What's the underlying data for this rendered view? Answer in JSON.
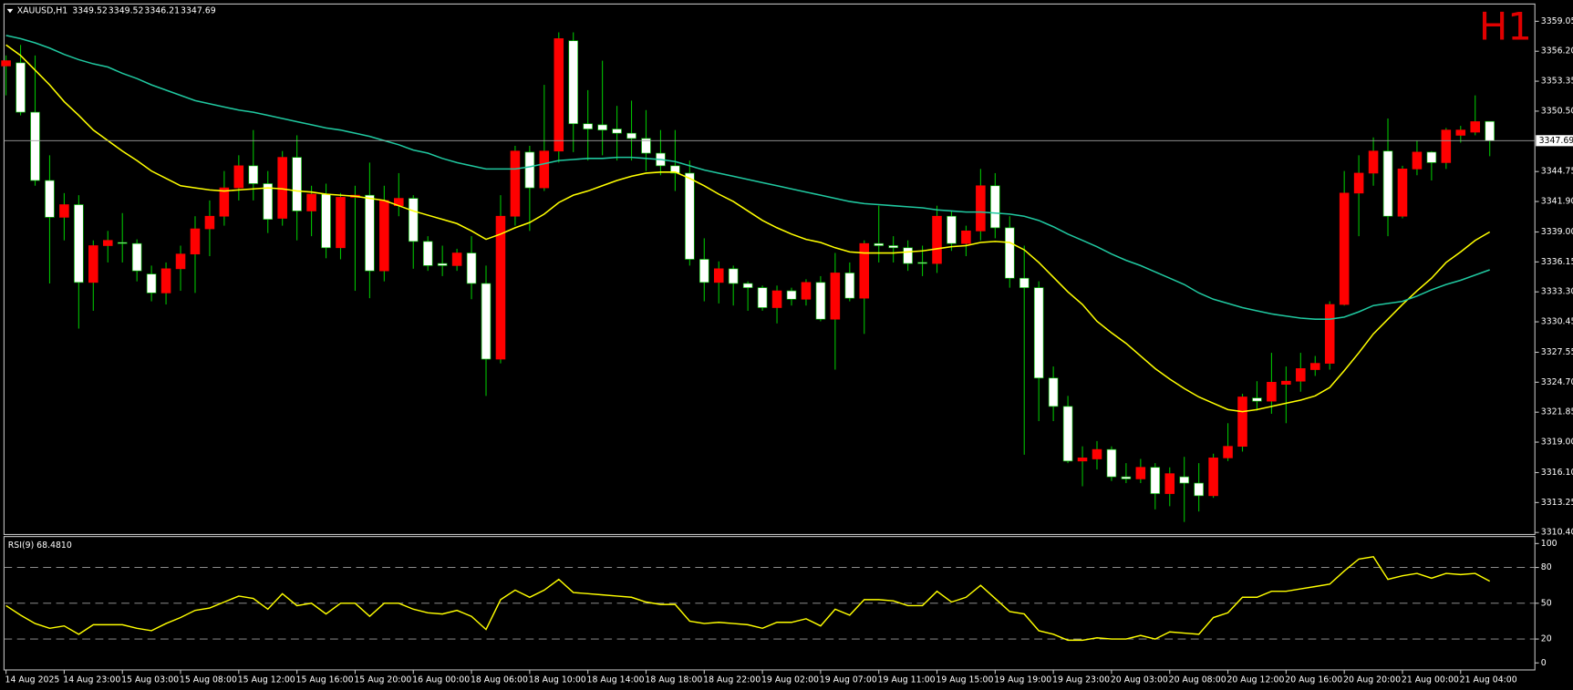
{
  "chart_data": [
    {
      "type": "candlestick",
      "symbol": "XAUUSD,H1",
      "timeframe": "H1",
      "categories": [
        "14 Aug 2025",
        null,
        null,
        null,
        "14 Aug 23:00",
        null,
        null,
        null,
        "15 Aug 03:00",
        null,
        null,
        null,
        "15 Aug 08:00",
        null,
        null,
        null,
        "15 Aug 12:00",
        null,
        null,
        null,
        "15 Aug 16:00",
        null,
        null,
        null,
        "15 Aug 20:00",
        null,
        null,
        null,
        "16 Aug 00:00",
        null,
        null,
        null,
        "18 Aug 06:00",
        null,
        null,
        null,
        "18 Aug 10:00",
        null,
        null,
        null,
        "18 Aug 14:00",
        null,
        null,
        null,
        "18 Aug 18:00",
        null,
        null,
        null,
        "18 Aug 22:00",
        null,
        null,
        null,
        "19 Aug 02:00",
        null,
        null,
        null,
        "19 Aug 07:00",
        null,
        null,
        null,
        "19 Aug 11:00",
        null,
        null,
        null,
        "19 Aug 15:00",
        null,
        null,
        null,
        "19 Aug 19:00",
        null,
        null,
        null,
        "19 Aug 23:00",
        null,
        null,
        null,
        "20 Aug 03:00",
        null,
        null,
        null,
        "20 Aug 08:00",
        null,
        null,
        null,
        "20 Aug 12:00",
        null,
        null,
        null,
        "20 Aug 16:00",
        null,
        null,
        null,
        "20 Aug 20:00",
        null,
        null,
        null,
        "21 Aug 00:00",
        null,
        null,
        null,
        "21 Aug 04:00",
        null,
        null
      ],
      "open": [
        3354.8,
        3355.1,
        3350.4,
        3343.9,
        3340.4,
        3341.6,
        3334.2,
        3337.7,
        3338.0,
        3337.9,
        3335.0,
        3333.2,
        3335.5,
        3336.9,
        3339.3,
        3340.5,
        3343.2,
        3345.3,
        3343.6,
        3340.3,
        3346.1,
        3341.0,
        3342.6,
        3337.5,
        3342.3,
        3342.5,
        3335.3,
        3341.5,
        3342.2,
        3338.1,
        3336.0,
        3335.8,
        3337.0,
        3334.1,
        3326.9,
        3340.5,
        3346.6,
        3343.2,
        3346.7,
        3357.2,
        3349.3,
        3349.2,
        3348.8,
        3348.4,
        3347.9,
        3346.5,
        3345.3,
        3344.6,
        3336.4,
        3334.2,
        3335.5,
        3334.1,
        3333.7,
        3331.8,
        3333.4,
        3332.6,
        3334.2,
        3330.7,
        3335.1,
        3332.7,
        3337.9,
        3337.7,
        3337.5,
        3336.1,
        3336.0,
        3340.5,
        3337.9,
        3339.1,
        3343.4,
        3339.4,
        3334.6,
        3333.7,
        3325.1,
        3322.4,
        3317.2,
        3317.4,
        3318.3,
        3315.7,
        3315.5,
        3316.6,
        3314.1,
        3315.7,
        3315.1,
        3313.9,
        3317.5,
        3318.6,
        3323.2,
        3322.9,
        3324.5,
        3324.8,
        3325.9,
        3326.5,
        3332.1,
        3342.7,
        3344.6,
        3346.7,
        3340.5,
        3345.0,
        3346.6,
        3345.6,
        3348.2,
        3348.5,
        3349.52
      ],
      "high": [
        3355.8,
        3356.8,
        3355.8,
        3346.3,
        3342.7,
        3342.5,
        3338.2,
        3339.1,
        3340.8,
        3338.3,
        3335.8,
        3336.1,
        3337.7,
        3340.5,
        3342.0,
        3344.8,
        3346.3,
        3348.7,
        3344.8,
        3346.7,
        3348.2,
        3343.4,
        3343.6,
        3342.7,
        3343.4,
        3345.6,
        3343.4,
        3344.6,
        3342.5,
        3338.6,
        3337.7,
        3337.4,
        3338.6,
        3335.8,
        3342.5,
        3347.2,
        3347.2,
        3353.0,
        3358.0,
        3358.0,
        3352.5,
        3355.3,
        3351.0,
        3351.5,
        3350.6,
        3348.7,
        3348.7,
        3345.8,
        3338.4,
        3336.2,
        3335.8,
        3334.3,
        3333.9,
        3333.9,
        3333.7,
        3334.5,
        3334.8,
        3337.0,
        3336.1,
        3338.2,
        3341.5,
        3338.6,
        3338.2,
        3337.7,
        3341.5,
        3341.0,
        3339.6,
        3345.0,
        3344.6,
        3340.5,
        3337.7,
        3334.3,
        3326.2,
        3323.4,
        3318.6,
        3319.1,
        3318.6,
        3317.0,
        3317.4,
        3317.0,
        3316.6,
        3317.6,
        3317.0,
        3317.9,
        3320.8,
        3323.6,
        3324.8,
        3327.5,
        3326.2,
        3327.5,
        3327.2,
        3332.4,
        3344.8,
        3346.3,
        3348.0,
        3349.8,
        3345.3,
        3347.7,
        3346.7,
        3348.9,
        3349.1,
        3352.0,
        3349.52
      ],
      "low": [
        3352.0,
        3350.1,
        3343.4,
        3334.1,
        3338.2,
        3329.8,
        3331.5,
        3336.1,
        3336.1,
        3334.3,
        3332.4,
        3332.1,
        3333.4,
        3333.2,
        3336.7,
        3339.6,
        3342.0,
        3342.0,
        3338.9,
        3339.6,
        3338.2,
        3338.6,
        3336.5,
        3336.4,
        3333.4,
        3332.7,
        3334.3,
        3340.5,
        3335.5,
        3335.3,
        3334.8,
        3335.3,
        3332.6,
        3323.4,
        3326.5,
        3339.6,
        3339.1,
        3342.9,
        3345.6,
        3346.6,
        3345.8,
        3346.3,
        3345.8,
        3345.8,
        3344.8,
        3344.4,
        3342.9,
        3335.8,
        3332.4,
        3332.2,
        3332.0,
        3331.5,
        3331.5,
        3330.3,
        3332.0,
        3332.0,
        3330.5,
        3325.9,
        3332.4,
        3329.3,
        3336.1,
        3336.1,
        3335.3,
        3334.8,
        3335.1,
        3337.2,
        3336.7,
        3338.2,
        3338.4,
        3333.7,
        3317.8,
        3321.0,
        3321.0,
        3317.0,
        3314.8,
        3316.4,
        3315.3,
        3315.1,
        3315.1,
        3312.6,
        3312.9,
        3311.4,
        3312.4,
        3313.7,
        3317.2,
        3318.1,
        3322.0,
        3321.7,
        3320.8,
        3323.8,
        3325.3,
        3325.9,
        3332.0,
        3338.6,
        3343.4,
        3338.6,
        3340.3,
        3344.4,
        3343.9,
        3345.0,
        3347.5,
        3348.2,
        3346.21
      ],
      "close": [
        3355.3,
        3350.4,
        3343.9,
        3340.4,
        3341.6,
        3334.2,
        3337.7,
        3338.2,
        3337.9,
        3335.3,
        3333.2,
        3335.5,
        3336.9,
        3339.3,
        3340.5,
        3343.2,
        3345.3,
        3343.6,
        3340.2,
        3346.1,
        3341.0,
        3342.6,
        3337.5,
        3342.3,
        3342.5,
        3335.3,
        3342.0,
        3342.2,
        3338.1,
        3335.8,
        3335.8,
        3337.0,
        3334.1,
        3326.9,
        3340.5,
        3346.7,
        3343.2,
        3346.7,
        3357.4,
        3349.3,
        3348.8,
        3348.7,
        3348.4,
        3347.9,
        3346.5,
        3345.3,
        3344.6,
        3336.4,
        3334.2,
        3335.5,
        3334.1,
        3333.7,
        3331.8,
        3333.4,
        3332.6,
        3334.2,
        3330.7,
        3335.1,
        3332.7,
        3337.9,
        3337.7,
        3337.5,
        3336.0,
        3336.0,
        3340.5,
        3337.9,
        3339.1,
        3343.4,
        3339.4,
        3334.6,
        3333.7,
        3325.1,
        3322.4,
        3317.2,
        3317.5,
        3318.3,
        3315.7,
        3315.5,
        3316.6,
        3314.1,
        3316.0,
        3315.1,
        3313.9,
        3317.5,
        3318.6,
        3323.3,
        3322.9,
        3324.7,
        3324.8,
        3326.0,
        3326.5,
        3332.1,
        3342.7,
        3344.6,
        3346.7,
        3340.5,
        3345.0,
        3346.6,
        3345.6,
        3348.7,
        3348.7,
        3349.5,
        3347.69
      ],
      "up_color": "#ff0000",
      "down_color": "#ffffff",
      "wick_color": "#00c000",
      "series": [
        {
          "color": "#ffff00",
          "values": [
            3356.8,
            3355.8,
            3354.4,
            3353.0,
            3351.4,
            3350.1,
            3348.7,
            3347.7,
            3346.7,
            3345.8,
            3344.8,
            3344.1,
            3343.4,
            3343.2,
            3343.0,
            3342.9,
            3343.0,
            3343.1,
            3343.2,
            3343.1,
            3342.9,
            3342.8,
            3342.6,
            3342.5,
            3342.4,
            3342.2,
            3342.0,
            3341.5,
            3341.0,
            3340.6,
            3340.2,
            3339.8,
            3339.1,
            3338.3,
            3338.8,
            3339.4,
            3339.9,
            3340.7,
            3341.8,
            3342.5,
            3342.9,
            3343.4,
            3343.9,
            3344.3,
            3344.6,
            3344.7,
            3344.7,
            3344.1,
            3343.4,
            3342.6,
            3341.9,
            3341.0,
            3340.1,
            3339.4,
            3338.8,
            3338.3,
            3338.0,
            3337.5,
            3337.1,
            3337.0,
            3337.0,
            3337.0,
            3337.1,
            3337.2,
            3337.4,
            3337.6,
            3337.7,
            3338.0,
            3338.1,
            3338.0,
            3337.3,
            3336.1,
            3334.7,
            3333.3,
            3332.1,
            3330.5,
            3329.4,
            3328.4,
            3327.2,
            3326.0,
            3325.0,
            3324.1,
            3323.3,
            3322.7,
            3322.1,
            3321.9,
            3322.1,
            3322.4,
            3322.7,
            3323.0,
            3323.4,
            3324.2,
            3325.8,
            3327.5,
            3329.3,
            3330.7,
            3332.1,
            3333.4,
            3334.6,
            3336.1,
            3337.1,
            3338.2,
            3339.0
          ]
        },
        {
          "color": "#20c8a0",
          "values": [
            3357.7,
            3357.4,
            3357.0,
            3356.5,
            3355.9,
            3355.4,
            3355.0,
            3354.7,
            3354.1,
            3353.6,
            3353.0,
            3352.5,
            3352.0,
            3351.5,
            3351.2,
            3350.9,
            3350.6,
            3350.4,
            3350.1,
            3349.8,
            3349.5,
            3349.2,
            3348.9,
            3348.7,
            3348.4,
            3348.1,
            3347.7,
            3347.3,
            3346.8,
            3346.5,
            3346.0,
            3345.6,
            3345.3,
            3345.0,
            3345.0,
            3345.0,
            3345.2,
            3345.5,
            3345.8,
            3345.9,
            3346.0,
            3346.0,
            3346.1,
            3346.1,
            3346.0,
            3345.9,
            3345.7,
            3345.3,
            3344.9,
            3344.6,
            3344.3,
            3344.0,
            3343.7,
            3343.4,
            3343.1,
            3342.8,
            3342.5,
            3342.2,
            3341.9,
            3341.7,
            3341.6,
            3341.5,
            3341.4,
            3341.3,
            3341.1,
            3341.0,
            3340.9,
            3340.9,
            3340.8,
            3340.7,
            3340.5,
            3340.1,
            3339.5,
            3338.8,
            3338.2,
            3337.6,
            3336.9,
            3336.3,
            3335.8,
            3335.2,
            3334.6,
            3334.0,
            3333.2,
            3332.6,
            3332.2,
            3331.8,
            3331.5,
            3331.2,
            3331.0,
            3330.8,
            3330.7,
            3330.7,
            3330.9,
            3331.4,
            3332.0,
            3332.2,
            3332.4,
            3332.9,
            3333.5,
            3334.0,
            3334.4,
            3334.9,
            3335.4
          ]
        }
      ],
      "current_price": 3347.69,
      "ylim": [
        3310.3,
        3360.6
      ],
      "yticks": [
        3359.05,
        {
          "value": 3356.2,
          "label": "3356.20"
        },
        3353.35,
        {
          "value": 3350.5,
          "label": "3350.50"
        },
        3344.75,
        {
          "value": 3341.9,
          "label": "3341.90"
        },
        {
          "value": 3339,
          "label": "3339.00"
        },
        3336.15,
        {
          "value": 3333.3,
          "label": "3333.30"
        },
        3330.45,
        3327.55,
        {
          "value": 3324.7,
          "label": "3324.70"
        },
        3321.85,
        {
          "value": 3319,
          "label": "3319.00"
        },
        {
          "value": 3316.1,
          "label": "3316.10"
        },
        3313.25,
        {
          "value": 3310.4,
          "label": "3310.40"
        }
      ]
    },
    {
      "type": "line",
      "title": "RSI(9) 68.4810",
      "color": "#ffff00",
      "values": [
        48,
        40,
        33,
        29,
        31,
        24,
        32,
        32,
        32,
        29,
        27,
        33,
        38,
        44,
        46,
        51,
        56,
        54,
        45,
        58,
        48,
        50,
        41,
        50,
        50,
        39,
        50,
        50,
        45,
        42,
        41,
        44,
        39,
        28,
        53,
        61,
        55,
        61,
        70,
        59,
        58,
        57,
        56,
        55,
        51,
        49,
        49,
        35,
        33,
        34,
        33,
        32,
        29,
        34,
        34,
        37,
        31,
        45,
        40,
        53,
        53,
        52,
        48,
        48,
        60,
        51,
        55,
        65,
        54,
        43,
        41,
        27,
        24,
        19,
        19,
        21,
        20,
        20,
        23,
        20,
        26,
        25,
        24,
        38,
        42,
        55,
        55,
        60,
        60,
        62,
        64,
        66,
        77,
        87,
        89,
        70,
        73,
        75,
        71,
        75,
        74,
        75,
        68.481
      ],
      "levels": [
        80,
        50,
        20
      ],
      "ylim": [
        -5.9,
        104.2
      ],
      "yticks": [
        100,
        80,
        50,
        20,
        0
      ]
    }
  ]
}
